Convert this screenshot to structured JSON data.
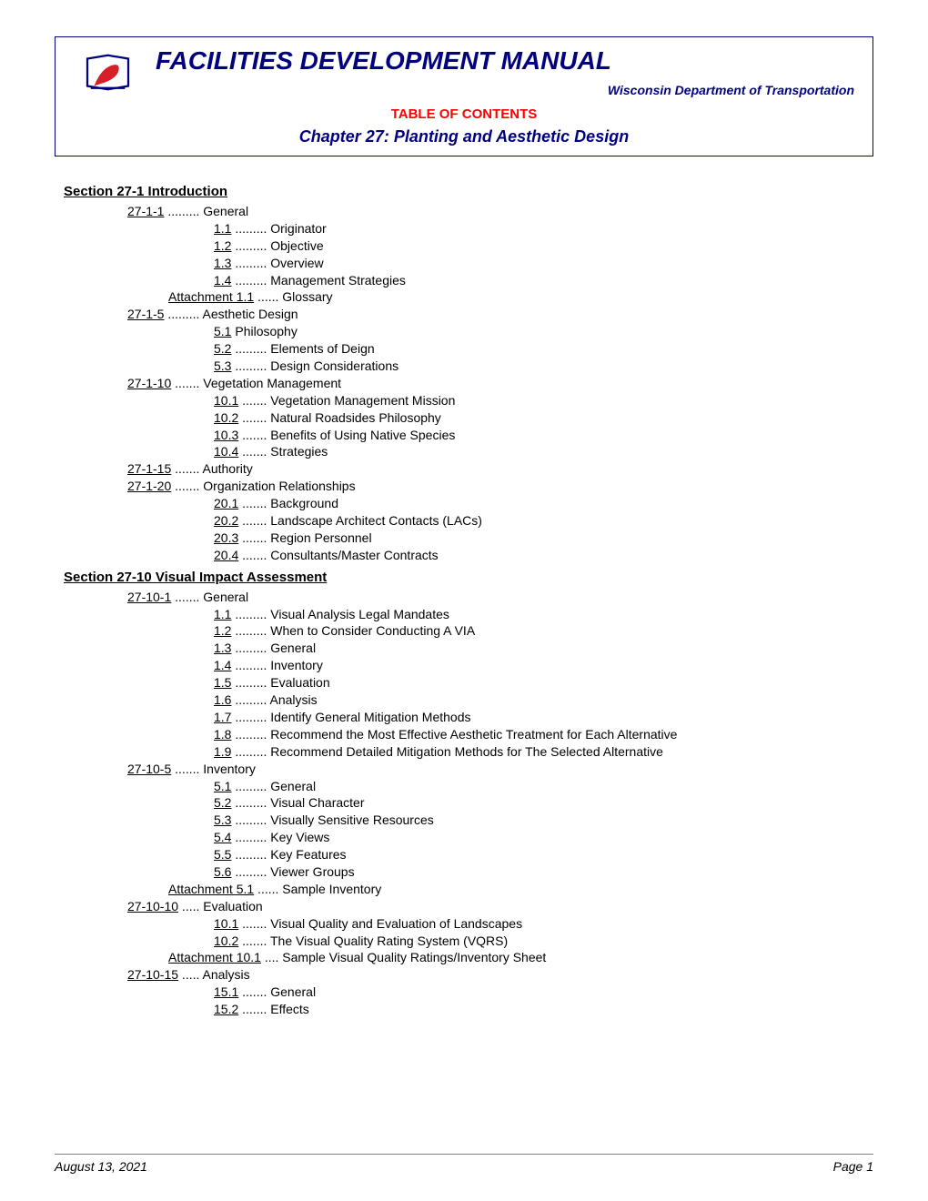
{
  "header": {
    "main_title": "FACILITIES DEVELOPMENT MANUAL",
    "subtitle": "Wisconsin Department of Transportation",
    "toc_label": "TABLE OF CONTENTS",
    "chapter_label": "Chapter 27: Planting and Aesthetic Design"
  },
  "logo": {
    "colors": {
      "red": "#d61f26",
      "navy": "#000080",
      "white": "#ffffff"
    }
  },
  "sections": [
    {
      "title": "Section 27-1 Introduction",
      "items": [
        {
          "level": 1,
          "link": "27-1-1",
          "dots": " ......... ",
          "text": "General"
        },
        {
          "level": 2,
          "link": "1.1",
          "dots": " ......... ",
          "text": "Originator"
        },
        {
          "level": 2,
          "link": "1.2",
          "dots": " ......... ",
          "text": "Objective"
        },
        {
          "level": 2,
          "link": "1.3",
          "dots": " ......... ",
          "text": "Overview"
        },
        {
          "level": 2,
          "link": "1.4",
          "dots": " ......... ",
          "text": "Management Strategies"
        },
        {
          "level": "att",
          "link": "Attachment 1.1",
          "dots": " ...... ",
          "text": "Glossary"
        },
        {
          "level": 1,
          "link": "27-1-5",
          "dots": " ......... ",
          "text": "Aesthetic Design"
        },
        {
          "level": 2,
          "link": "5.1",
          "dots": "     ",
          "text": "Philosophy"
        },
        {
          "level": 2,
          "link": "5.2",
          "dots": " ......... ",
          "text": "Elements of Deign"
        },
        {
          "level": 2,
          "link": "5.3",
          "dots": " ......... ",
          "text": "Design Considerations"
        },
        {
          "level": 1,
          "link": "27-1-10",
          "dots": " ....... ",
          "text": "Vegetation Management"
        },
        {
          "level": 2,
          "link": "10.1",
          "dots": " ....... ",
          "text": "Vegetation Management Mission"
        },
        {
          "level": 2,
          "link": "10.2",
          "dots": " ....... ",
          "text": "Natural Roadsides Philosophy"
        },
        {
          "level": 2,
          "link": "10.3",
          "dots": " ....... ",
          "text": "Benefits of Using Native Species"
        },
        {
          "level": 2,
          "link": "10.4",
          "dots": " ....... ",
          "text": "Strategies"
        },
        {
          "level": 1,
          "link": "27-1-15",
          "dots": " ....... ",
          "text": "Authority"
        },
        {
          "level": 1,
          "link": "27-1-20",
          "dots": " ....... ",
          "text": "Organization Relationships"
        },
        {
          "level": 2,
          "link": "20.1",
          "dots": " ....... ",
          "text": "Background"
        },
        {
          "level": 2,
          "link": "20.2",
          "dots": " ....... ",
          "text": "Landscape Architect Contacts (LACs)"
        },
        {
          "level": 2,
          "link": "20.3",
          "dots": " ....... ",
          "text": "Region Personnel"
        },
        {
          "level": 2,
          "link": "20.4",
          "dots": " ....... ",
          "text": "Consultants/Master Contracts"
        }
      ]
    },
    {
      "title": "Section 27-10 Visual Impact Assessment",
      "items": [
        {
          "level": 1,
          "link": "27-10-1",
          "dots": " ....... ",
          "text": "General"
        },
        {
          "level": 2,
          "link": "1.1",
          "dots": " ......... ",
          "text": "Visual Analysis Legal Mandates"
        },
        {
          "level": 2,
          "link": "1.2",
          "dots": " ......... ",
          "text": "When to Consider Conducting A VIA"
        },
        {
          "level": 2,
          "link": "1.3",
          "dots": " ......... ",
          "text": "General"
        },
        {
          "level": 2,
          "link": "1.4",
          "dots": " ......... ",
          "text": "Inventory"
        },
        {
          "level": 2,
          "link": "1.5",
          "dots": " ......... ",
          "text": "Evaluation"
        },
        {
          "level": 2,
          "link": "1.6",
          "dots": " ......... ",
          "text": "Analysis"
        },
        {
          "level": 2,
          "link": "1.7",
          "dots": " ......... ",
          "text": "Identify General Mitigation Methods"
        },
        {
          "level": 2,
          "link": "1.8",
          "dots": " ......... ",
          "text": "Recommend the Most Effective Aesthetic Treatment for Each Alternative"
        },
        {
          "level": 2,
          "link": "1.9",
          "dots": " ......... ",
          "text": "Recommend Detailed Mitigation Methods for The Selected Alternative"
        },
        {
          "level": 1,
          "link": "27-10-5",
          "dots": " ....... ",
          "text": "Inventory"
        },
        {
          "level": 2,
          "link": "5.1",
          "dots": " ......... ",
          "text": "General"
        },
        {
          "level": 2,
          "link": "5.2",
          "dots": " ......... ",
          "text": "Visual Character"
        },
        {
          "level": 2,
          "link": "5.3",
          "dots": " ......... ",
          "text": "Visually Sensitive Resources"
        },
        {
          "level": 2,
          "link": "5.4",
          "dots": " ......... ",
          "text": "Key Views"
        },
        {
          "level": 2,
          "link": "5.5",
          "dots": " ......... ",
          "text": "Key Features"
        },
        {
          "level": 2,
          "link": "5.6",
          "dots": " ......... ",
          "text": "Viewer Groups"
        },
        {
          "level": "att",
          "link": "Attachment 5.1",
          "dots": " ...... ",
          "text": "Sample Inventory"
        },
        {
          "level": 1,
          "link": "27-10-10",
          "dots": " ..... ",
          "text": "Evaluation"
        },
        {
          "level": 2,
          "link": "10.1",
          "dots": " ....... ",
          "text": "Visual Quality and Evaluation of Landscapes"
        },
        {
          "level": 2,
          "link": "10.2",
          "dots": " ....... ",
          "text": "The Visual Quality Rating System (VQRS)"
        },
        {
          "level": "att",
          "link": "Attachment 10.1",
          "dots": " .... ",
          "text": "Sample Visual Quality Ratings/Inventory Sheet"
        },
        {
          "level": 1,
          "link": "27-10-15",
          "dots": " ..... ",
          "text": "Analysis"
        },
        {
          "level": 2,
          "link": "15.1",
          "dots": " ....... ",
          "text": "General"
        },
        {
          "level": 2,
          "link": "15.2",
          "dots": " ....... ",
          "text": "Effects"
        }
      ]
    }
  ],
  "footer": {
    "date": "August 13, 2021",
    "page": "Page 1"
  }
}
